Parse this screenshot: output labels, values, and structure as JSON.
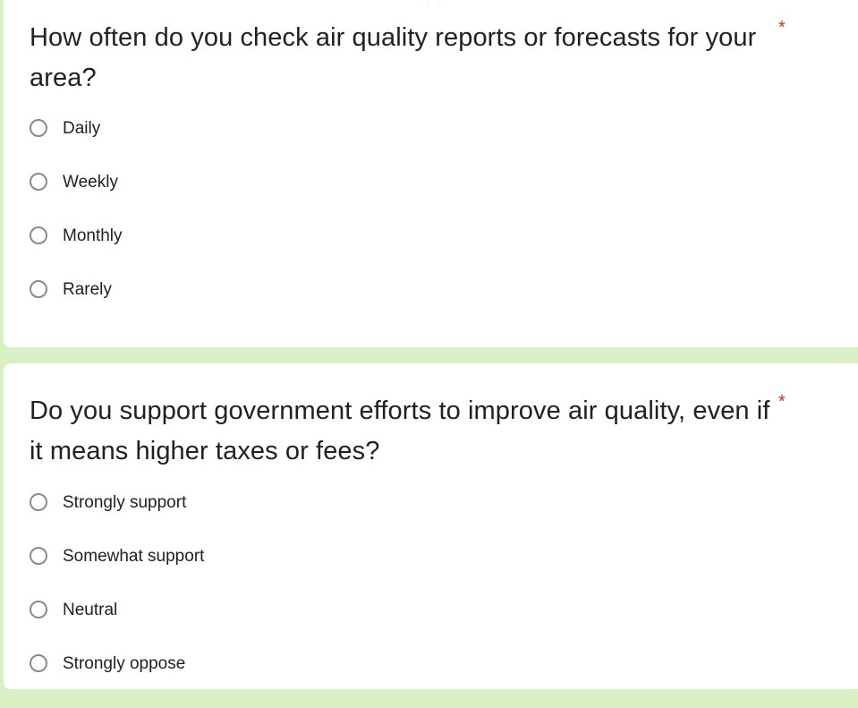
{
  "questions": [
    {
      "title": "How often do you check air quality reports or forecasts for your area?",
      "required_mark": "*",
      "options": [
        "Daily",
        "Weekly",
        "Monthly",
        "Rarely"
      ]
    },
    {
      "title": "Do you support government efforts to improve air quality, even if it means higher taxes or fees?",
      "required_mark": "*",
      "options": [
        "Strongly support",
        "Somewhat support",
        "Neutral",
        "Strongly oppose"
      ]
    }
  ],
  "drag_handle": "⠿⠿",
  "colors": {
    "page_background": "#d9efc4",
    "card_background": "#ffffff",
    "required": "#d93025",
    "radio_border": "#8a8a8a"
  }
}
